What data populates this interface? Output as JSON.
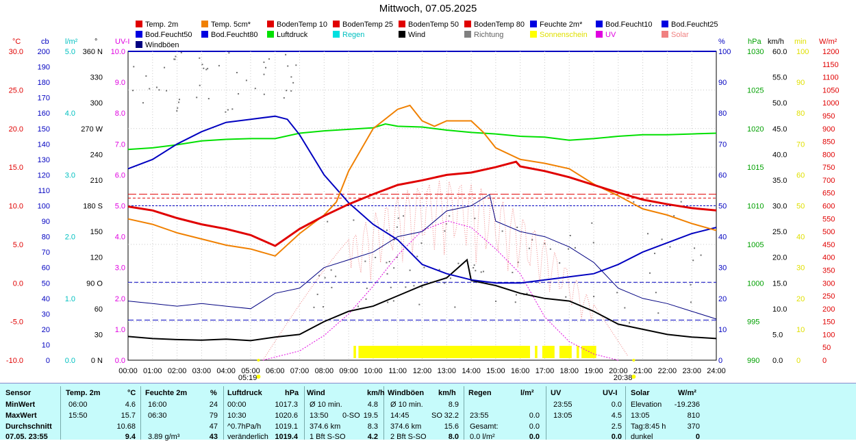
{
  "title": "Mittwoch, 07.05.2025",
  "legend": [
    {
      "label": "Temp. 2m",
      "color": "#e00000"
    },
    {
      "label": "Temp. 5cm*",
      "color": "#f08000"
    },
    {
      "label": "BodenTemp 10",
      "color": "#e00000"
    },
    {
      "label": "BodenTemp 25",
      "color": "#e00000"
    },
    {
      "label": "BodenTemp 50",
      "color": "#e00000"
    },
    {
      "label": "BodenTemp 80",
      "color": "#e00000"
    },
    {
      "label": "Feuchte 2m*",
      "color": "#0000e0"
    },
    {
      "label": "Bod.Feucht10",
      "color": "#0000e0"
    },
    {
      "label": "Bod.Feucht25",
      "color": "#0000e0"
    },
    {
      "label": "Bod.Feucht50",
      "color": "#0000e0"
    },
    {
      "label": "Bod.Feucht80",
      "color": "#0000e0"
    },
    {
      "label": "Luftdruck",
      "color": "#00e000"
    },
    {
      "label": "Regen",
      "color": "#00e0e0"
    },
    {
      "label": "Wind",
      "color": "#000000"
    },
    {
      "label": "Richtung",
      "color": "#808080"
    },
    {
      "label": "Sonnenschein",
      "color": "#ffff00"
    },
    {
      "label": "UV",
      "color": "#e000e0"
    },
    {
      "label": "Solar",
      "color": "#f08080"
    },
    {
      "label": "Windböen",
      "color": "#000080"
    }
  ],
  "axes_left": [
    {
      "unit": "°C",
      "color": "#e00000",
      "ticks": [
        "30.0",
        "25.0",
        "20.0",
        "15.0",
        "10.0",
        "5.0",
        "0.0",
        "-5.0",
        "-10.0"
      ]
    },
    {
      "unit": "cb",
      "color": "#0000c0",
      "ticks": [
        "200",
        "190",
        "180",
        "170",
        "160",
        "150",
        "140",
        "130",
        "120",
        "110",
        "100",
        "90",
        "80",
        "70",
        "60",
        "50",
        "40",
        "30",
        "20",
        "10",
        "0"
      ]
    },
    {
      "unit": "l/m²",
      "color": "#00c0c0",
      "ticks": [
        "5.0",
        "4.0",
        "3.0",
        "2.0",
        "1.0",
        "0.0"
      ]
    },
    {
      "unit": "°",
      "color": "#000000",
      "ticks": [
        "360 N",
        "330",
        "300",
        "270 W",
        "240",
        "210",
        "180 S",
        "150",
        "120",
        "90 O",
        "60",
        "30",
        "0 N"
      ]
    },
    {
      "unit": "UV-I",
      "color": "#e000e0",
      "ticks": [
        "10.0",
        "9.0",
        "8.0",
        "7.0",
        "6.0",
        "5.0",
        "4.0",
        "3.0",
        "2.0",
        "1.0",
        "0.0"
      ]
    }
  ],
  "axes_right": [
    {
      "unit": "%",
      "color": "#0000c0",
      "ticks": [
        "100",
        "90",
        "80",
        "70",
        "60",
        "50",
        "40",
        "30",
        "20",
        "10",
        "0"
      ]
    },
    {
      "unit": "hPa",
      "color": "#00a000",
      "ticks": [
        "1030",
        "1025",
        "1020",
        "1015",
        "1010",
        "1005",
        "1000",
        "995",
        "990"
      ]
    },
    {
      "unit": "km/h",
      "color": "#000000",
      "ticks": [
        "60.0",
        "55.0",
        "50.0",
        "45.0",
        "40.0",
        "35.0",
        "30.0",
        "25.0",
        "20.0",
        "15.0",
        "10.0",
        "5.0",
        "0.0"
      ]
    },
    {
      "unit": "min",
      "color": "#e0e000",
      "ticks": [
        "100",
        "90",
        "80",
        "70",
        "60",
        "50",
        "40",
        "30",
        "20",
        "10",
        "0"
      ]
    },
    {
      "unit": "W/m²",
      "color": "#e00000",
      "ticks": [
        "1200",
        "1150",
        "1100",
        "1050",
        "1000",
        "950",
        "900",
        "850",
        "800",
        "750",
        "700",
        "650",
        "600",
        "550",
        "500",
        "450",
        "400",
        "350",
        "300",
        "250",
        "200",
        "150",
        "100",
        "50",
        "0"
      ]
    }
  ],
  "sun_markers": {
    "sunrise": "05:19",
    "sunset": "20:38"
  },
  "chart_data": {
    "type": "line",
    "title": "Mittwoch, 07.05.2025",
    "x_range": [
      "00:00",
      "24:00"
    ],
    "x_ticks": [
      "00:00",
      "01:00",
      "02:00",
      "03:00",
      "04:00",
      "05:00",
      "06:00",
      "07:00",
      "08:00",
      "09:00",
      "10:00",
      "11:00",
      "12:00",
      "13:00",
      "14:00",
      "15:00",
      "16:00",
      "17:00",
      "18:00",
      "19:00",
      "20:00",
      "21:00",
      "22:00",
      "23:00",
      "24:00"
    ],
    "ylim_temp": [
      -10,
      30
    ],
    "ylim_humidity": [
      0,
      100
    ],
    "ylim_pressure": [
      990,
      1030
    ],
    "ylim_wind": [
      0,
      60
    ],
    "ylim_uv": [
      0,
      10
    ],
    "series": [
      {
        "name": "Temp. 2m",
        "axis": "temp",
        "color": "#e00000",
        "x": [
          0,
          1,
          2,
          3,
          4,
          5,
          6,
          7,
          8,
          9,
          10,
          11,
          12,
          13,
          14,
          15,
          15.83,
          16,
          17,
          18,
          19,
          20,
          21,
          22,
          23,
          24
        ],
        "values": [
          9.9,
          9.4,
          8.4,
          7.6,
          7.0,
          6.2,
          4.8,
          7.0,
          8.7,
          10.2,
          11.5,
          12.7,
          13.3,
          14.0,
          14.3,
          15.0,
          15.7,
          15.1,
          14.5,
          13.7,
          12.7,
          11.7,
          10.8,
          10.2,
          9.7,
          9.4
        ]
      },
      {
        "name": "Temp. 5cm*",
        "axis": "temp",
        "color": "#f08000",
        "x": [
          0,
          1,
          2,
          3,
          4,
          5,
          6,
          7,
          8,
          8.5,
          9,
          10,
          11,
          11.5,
          12,
          12.5,
          13,
          14,
          14.5,
          15,
          16,
          17,
          18,
          19,
          20,
          21,
          22,
          23,
          24
        ],
        "values": [
          8.3,
          7.6,
          6.5,
          5.7,
          4.9,
          4.4,
          3.5,
          6.4,
          8.8,
          10.5,
          14.5,
          20.0,
          22.5,
          23.0,
          21.0,
          20.3,
          21.0,
          21.0,
          19.5,
          17.5,
          16.0,
          15.5,
          14.8,
          12.8,
          11.3,
          9.6,
          8.8,
          7.7,
          6.8
        ]
      },
      {
        "name": "BodenTemp 10",
        "axis": "temp",
        "color": "#e00000",
        "x": [
          0,
          24
        ],
        "values": [
          11.5,
          11.5
        ]
      },
      {
        "name": "BodenTemp 25",
        "axis": "temp",
        "color": "#e00000",
        "x": [
          0,
          24
        ],
        "values": [
          11.0,
          11.0
        ]
      },
      {
        "name": "Feuchte 2m*",
        "axis": "humidity",
        "color": "#0000c0",
        "x": [
          0,
          1,
          2,
          3,
          4,
          5,
          6,
          6.5,
          7,
          8,
          9,
          10,
          11,
          12,
          13,
          14,
          15,
          16,
          17,
          18,
          19,
          20,
          21,
          22,
          23,
          24
        ],
        "values": [
          62,
          65,
          70,
          74,
          77,
          78,
          79,
          78,
          73,
          60,
          51,
          44,
          39,
          31,
          28,
          26,
          25,
          25,
          26,
          27,
          28,
          31,
          35,
          38,
          41,
          43
        ]
      },
      {
        "name": "Luftdruck",
        "axis": "pressure",
        "color": "#00e000",
        "x": [
          0,
          1,
          2,
          3,
          4,
          5,
          6,
          7,
          8,
          9,
          10,
          10.5,
          11,
          12,
          13,
          14,
          15,
          16,
          17,
          18,
          19,
          20,
          21,
          22,
          23,
          24
        ],
        "values": [
          1017.3,
          1017.5,
          1017.9,
          1018.4,
          1018.6,
          1018.7,
          1018.7,
          1019.4,
          1019.7,
          1019.9,
          1020.1,
          1020.6,
          1020.3,
          1020.2,
          1019.8,
          1019.5,
          1019.3,
          1019.0,
          1018.9,
          1018.5,
          1018.7,
          1019.0,
          1019.2,
          1019.2,
          1019.3,
          1019.4
        ]
      },
      {
        "name": "Wind",
        "axis": "wind",
        "color": "#000000",
        "x": [
          0,
          1,
          2,
          3,
          4,
          5,
          6,
          7,
          8,
          9,
          10,
          11,
          12,
          13,
          13.83,
          14,
          15,
          16,
          17,
          18,
          19,
          20,
          21,
          22,
          23,
          24
        ],
        "values": [
          4.6,
          4.2,
          4.0,
          3.9,
          4.1,
          3.8,
          4.5,
          5.0,
          7.5,
          9.5,
          10.5,
          12.5,
          14.5,
          16.0,
          19.5,
          15.5,
          14.5,
          13.0,
          12.0,
          11.5,
          9.5,
          7.0,
          6.0,
          5.0,
          4.5,
          4.2
        ]
      },
      {
        "name": "Windböen",
        "axis": "wind",
        "color": "#000080",
        "x": [
          0,
          1,
          2,
          3,
          4,
          5,
          6,
          7,
          8,
          9,
          10,
          11,
          12,
          13,
          14,
          14.75,
          15,
          16,
          17,
          18,
          19,
          20,
          21,
          22,
          23,
          24
        ],
        "values": [
          11.5,
          11.0,
          10.5,
          11.0,
          10.5,
          10.0,
          13.0,
          14.0,
          18.0,
          19.5,
          21.0,
          24.0,
          25.0,
          29.0,
          30.0,
          32.2,
          27.0,
          25.0,
          24.0,
          22.0,
          19.0,
          14.0,
          12.0,
          11.0,
          9.5,
          8.0
        ]
      },
      {
        "name": "UV",
        "axis": "uv",
        "color": "#e000e0",
        "x": [
          5.5,
          7,
          8,
          9,
          10,
          11,
          12,
          13,
          13.08,
          14,
          15,
          16,
          17,
          18,
          19,
          20
        ],
        "values": [
          0,
          0.3,
          0.8,
          1.5,
          2.4,
          3.4,
          4.2,
          4.5,
          4.5,
          4.3,
          3.6,
          2.8,
          1.4,
          0.6,
          0.2,
          0
        ]
      }
    ],
    "sunshine_intervals": [
      [
        9.2,
        9.3
      ],
      [
        9.4,
        16.4
      ],
      [
        16.6,
        16.7
      ],
      [
        16.9,
        17.4
      ],
      [
        17.6,
        18.1
      ],
      [
        18.3,
        18.4
      ],
      [
        18.5,
        19.1
      ]
    ],
    "solar_peak_w": 810
  },
  "stats": {
    "headers": [
      "Sensor",
      "Temp. 2m",
      "°C",
      "Feuchte 2m",
      "%",
      "Luftdruck",
      "hPa",
      "Wind",
      "km/h",
      "Windböen",
      "km/h",
      "Regen",
      "l/m²",
      "UV",
      "UV-I",
      "Solar",
      "W/m²"
    ],
    "row_labels": [
      "MinWert",
      "MaxWert",
      "Durchschnitt",
      "07.05. 23:55"
    ],
    "temp": [
      [
        "06:00",
        "4.6"
      ],
      [
        "15:50",
        "15.7"
      ],
      [
        "",
        "10.68"
      ],
      [
        "",
        "9.4"
      ]
    ],
    "humid": [
      [
        "16:00",
        "24"
      ],
      [
        "06:30",
        "79"
      ],
      [
        "",
        "47"
      ],
      [
        "3.89 g/m³",
        "43"
      ]
    ],
    "press": [
      [
        "00:00",
        "1017.3"
      ],
      [
        "10:30",
        "1020.6"
      ],
      [
        "^0.7hPa/h",
        "1019.1"
      ],
      [
        "veränderlich",
        "1019.4"
      ]
    ],
    "wind": [
      [
        "Ø 10 min.",
        "",
        "4.8"
      ],
      [
        "13:50",
        "0-SO",
        "19.5"
      ],
      [
        "374.6 km",
        "",
        "8.3"
      ],
      [
        "1 Bft S-SO",
        "",
        "4.2"
      ]
    ],
    "gust": [
      [
        "Ø 10 min.",
        "",
        "8.9"
      ],
      [
        "14:45",
        "SO",
        "32.2"
      ],
      [
        "374.6 km",
        "",
        "15.6"
      ],
      [
        "2 Bft S-SO",
        "",
        "8.0"
      ]
    ],
    "rain": [
      [
        "",
        "",
        ""
      ],
      [
        "23:55",
        "",
        "0.0"
      ],
      [
        "Gesamt:",
        "",
        "0.0"
      ],
      [
        "0.0 l/m²",
        "",
        "0.0"
      ]
    ],
    "uv": [
      [
        "23:55",
        "0.0"
      ],
      [
        "13:05",
        "4.5"
      ],
      [
        "",
        "2.5"
      ],
      [
        "",
        "0.0"
      ]
    ],
    "solar": [
      [
        "Elevation",
        "-19.236"
      ],
      [
        "13:05",
        "810"
      ],
      [
        "Tag:8:45 h",
        "370"
      ],
      [
        "dunkel",
        "0"
      ]
    ]
  }
}
